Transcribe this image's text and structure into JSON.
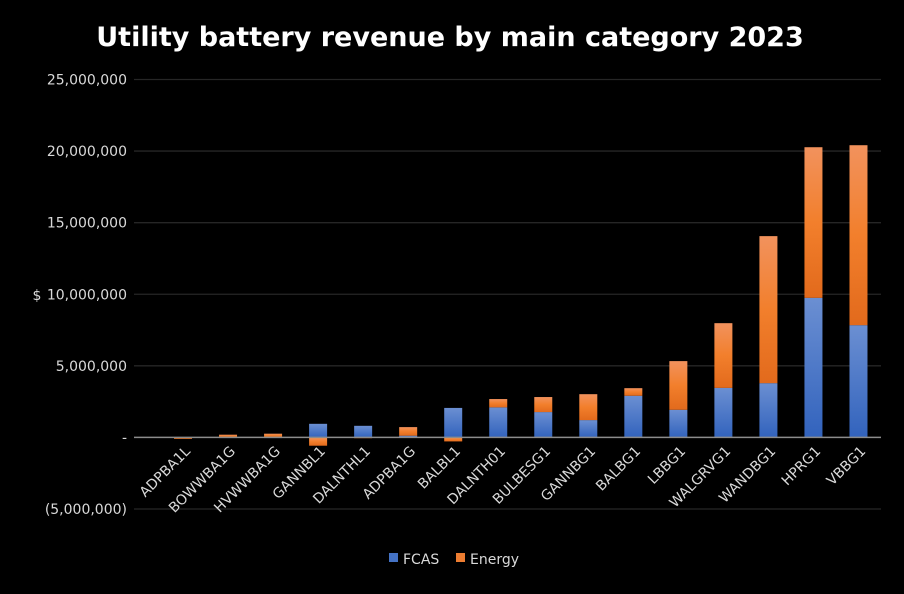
{
  "chart_data": {
    "type": "bar",
    "stacked": true,
    "title": "Utility battery revenue by main category 2023",
    "xlabel": "",
    "ylabel": "$",
    "ylim": [
      -5000000,
      25000000
    ],
    "yticks": [
      -5000000,
      0,
      5000000,
      10000000,
      15000000,
      20000000,
      25000000
    ],
    "ytick_labels": [
      "(5,000,000)",
      "-",
      "5,000,000",
      "10,000,000",
      "15,000,000",
      "20,000,000",
      "25,000,000"
    ],
    "grid": true,
    "legend_position": "bottom",
    "categories": [
      "ADPBA1L",
      "BOWWBA1G",
      "HVWWBA1G",
      "GANNBL1",
      "DALNTHL1",
      "ADPBA1G",
      "BALBL1",
      "DALNTH01",
      "BULBESG1",
      "GANNBG1",
      "BALBG1",
      "LBBG1",
      "WALGRVG1",
      "WANDBG1",
      "HPRG1",
      "VBBG1"
    ],
    "series": [
      {
        "name": "FCAS",
        "color": "#4472C4",
        "values": [
          20000,
          10000,
          10000,
          950000,
          810000,
          120000,
          2060000,
          2100000,
          1770000,
          1210000,
          2910000,
          1930000,
          3460000,
          3790000,
          9750000,
          7840000
        ]
      },
      {
        "name": "Energy",
        "color": "#ED7D31",
        "values": [
          -100000,
          180000,
          250000,
          -580000,
          -50000,
          600000,
          -280000,
          580000,
          1050000,
          1810000,
          530000,
          3400000,
          4520000,
          10270000,
          10520000,
          12570000
        ]
      }
    ]
  }
}
